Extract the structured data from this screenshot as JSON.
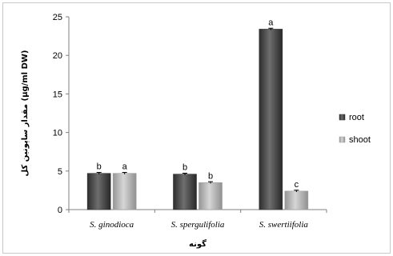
{
  "chart_data": {
    "type": "bar",
    "categories": [
      "S. ginodioca",
      "S. spergulifolia",
      "S. swertiifolia"
    ],
    "series": [
      {
        "name": "root",
        "values": [
          4.7,
          4.6,
          23.4
        ],
        "color": "#555555",
        "labels": [
          "b",
          "b",
          "a"
        ]
      },
      {
        "name": "shoot",
        "values": [
          4.7,
          3.5,
          2.4
        ],
        "color": "#bdbdbd",
        "labels": [
          "a",
          "b",
          "c"
        ]
      }
    ],
    "ylim": [
      0,
      25
    ],
    "yticks": [
      0,
      5,
      10,
      15,
      20,
      25
    ],
    "ylabel": "مقدار ساپونین کل (μg/ml DW)",
    "xlabel": "گونه",
    "title": "",
    "legend_position": "right",
    "grid": false,
    "error_bars": true
  }
}
